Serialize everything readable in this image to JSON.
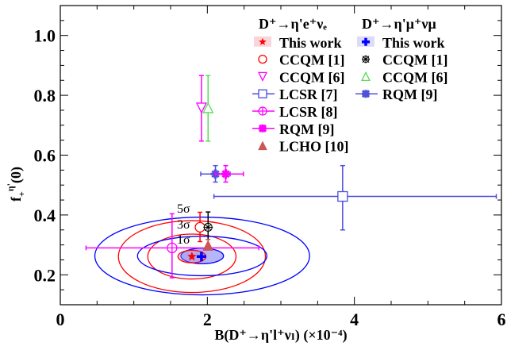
{
  "chart_data": {
    "type": "scatter",
    "xlabel": "B(D⁺→η'l⁺νₗ) (×10⁻⁴)",
    "ylabel_parts": {
      "main": "f",
      "sub": "+",
      "sup": "η'",
      "tail": "(0)"
    },
    "xlim": [
      0,
      6
    ],
    "ylim": [
      0.1,
      1.1
    ],
    "xticks": [
      0,
      2,
      4,
      6
    ],
    "xtick_labels": [
      "0",
      "2",
      "4",
      "6"
    ],
    "yticks": [
      0.2,
      0.4,
      0.6,
      0.8,
      1.0
    ],
    "ytick_labels": [
      "0.2",
      "0.4",
      "0.6",
      "0.8",
      "1.0"
    ],
    "grid": false,
    "legend_placement": "top-right",
    "legend": {
      "col1_title": "D⁺→η'e⁺νₑ",
      "col2_title": "D⁺→η'μ⁺νμ",
      "col1": [
        "This work",
        "CCQM [1]",
        "CCQM [6]",
        "LCSR [7]",
        "LCSR [8]",
        "RQM [9]",
        "LCHO [10]"
      ],
      "col2": [
        "This work",
        "CCQM [1]",
        "CCQM [6]",
        "RQM [9]"
      ]
    },
    "contour_labels": [
      "5σ",
      "3σ",
      "1σ"
    ],
    "contours": [
      {
        "name": "e-5sigma",
        "channel": "e",
        "cx": 1.79,
        "cy": 0.261,
        "rx": 1.0,
        "ry": 0.12,
        "color": "#ff0000",
        "fill": false
      },
      {
        "name": "mu-5sigma",
        "channel": "mu",
        "cx": 1.93,
        "cy": 0.263,
        "rx": 1.46,
        "ry": 0.13,
        "color": "#0000ff",
        "fill": false
      },
      {
        "name": "e-3sigma",
        "channel": "e",
        "cx": 1.79,
        "cy": 0.261,
        "rx": 0.6,
        "ry": 0.075,
        "color": "#ff0000",
        "fill": false
      },
      {
        "name": "mu-3sigma",
        "channel": "mu",
        "cx": 1.93,
        "cy": 0.263,
        "rx": 0.88,
        "ry": 0.066,
        "color": "#0000ff",
        "fill": false
      },
      {
        "name": "mu-1sigma",
        "channel": "mu",
        "cx": 1.93,
        "cy": 0.263,
        "rx": 0.29,
        "ry": 0.026,
        "color": "#0000ff",
        "fill": true
      },
      {
        "name": "e-1sigma",
        "channel": "e",
        "cx": 1.79,
        "cy": 0.261,
        "rx": 0.19,
        "ry": 0.021,
        "color": "#ff0000",
        "fill": true
      }
    ],
    "series": [
      {
        "name": "This work (e)",
        "marker": "star",
        "color": "#ff0000",
        "x": 1.79,
        "y": 0.261
      },
      {
        "name": "This work (mu)",
        "marker": "bold-plus",
        "color": "#0000ff",
        "x": 1.92,
        "y": 0.261
      },
      {
        "name": "CCQM [1] (e)",
        "marker": "circle-bar",
        "color": "#ff0000",
        "x": 1.9,
        "y": 0.359,
        "yerr": [
          0.311,
          0.409
        ]
      },
      {
        "name": "CCQM [1] (mu)",
        "marker": "spoke-circle",
        "color": "#000000",
        "x": 2.01,
        "y": 0.359,
        "yerr": [
          0.29,
          0.41
        ]
      },
      {
        "name": "CCQM [6] (e)",
        "marker": "triangle-down",
        "color": "#ff00ff",
        "x": 1.92,
        "y": 0.758,
        "yerr": [
          0.647,
          0.866
        ]
      },
      {
        "name": "CCQM [6] (mu)",
        "marker": "triangle-up",
        "color": "#55dd55",
        "x": 2.01,
        "y": 0.758,
        "yerr": [
          0.647,
          0.866
        ]
      },
      {
        "name": "LCSR [7]",
        "marker": "square",
        "color": "#4c4cdd",
        "x": 3.84,
        "y": 0.462,
        "xerr": [
          2.09,
          5.93
        ],
        "yerr": [
          0.35,
          0.565
        ]
      },
      {
        "name": "LCSR [8]",
        "marker": "circle-cross",
        "color": "#ff00ff",
        "x": 1.52,
        "y": 0.29,
        "xerr": [
          0.35,
          2.7
        ],
        "yerr": [
          0.19,
          0.404
        ]
      },
      {
        "name": "RQM [9] (mu)",
        "marker": "asterisk",
        "color": "#5050dd",
        "x": 2.11,
        "y": 0.537,
        "xerr": [
          1.91,
          2.31
        ],
        "yerr": [
          0.51,
          0.565
        ]
      },
      {
        "name": "RQM [9] (e)",
        "marker": "asterisk",
        "color": "#ff00ff",
        "x": 2.25,
        "y": 0.537,
        "xerr": [
          2.11,
          2.49
        ],
        "yerr": [
          0.51,
          0.565
        ]
      },
      {
        "name": "LCHO [10]",
        "marker": "triangle-filled",
        "color": "#cc5555",
        "x": 2.01,
        "y": 0.298,
        "yerr": [
          0.285,
          0.318
        ]
      }
    ]
  }
}
